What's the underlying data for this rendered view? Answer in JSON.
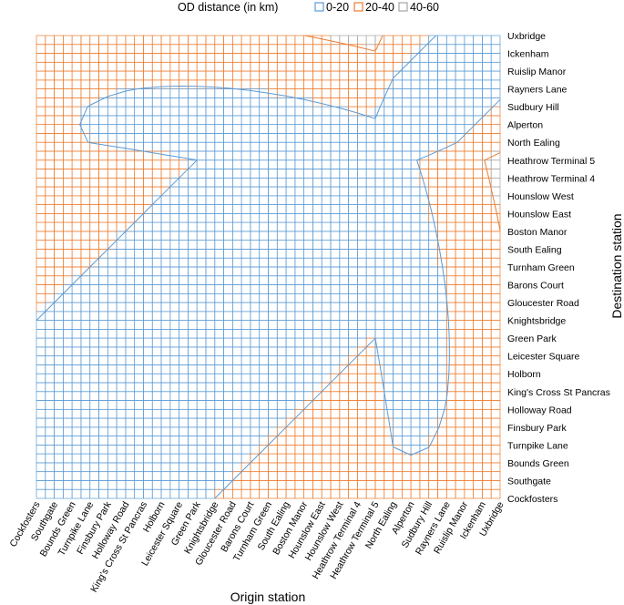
{
  "chart_data": {
    "type": "heatmap",
    "legend_title": "OD distance (in km)",
    "legend": [
      {
        "label": "0-20",
        "color": "#5b9bd5"
      },
      {
        "label": "20-40",
        "color": "#ed7d31"
      },
      {
        "label": "40-60",
        "color": "#a5a5a5"
      }
    ],
    "xlabel": "Origin station",
    "ylabel": "Destination station",
    "stations": [
      "Cockfosters",
      "Southgate",
      "Bounds Green",
      "Turnpike Lane",
      "Finsbury Park",
      "Holloway Road",
      "King's Cross St Pancras",
      "Holborn",
      "Leicester Square",
      "Green Park",
      "Knightsbridge",
      "Gloucester Road",
      "Barons Court",
      "Turnham Green",
      "South Ealing",
      "Boston Manor",
      "Hounslow East",
      "Hounslow West",
      "Heathrow Terminal 4",
      "Heathrow Terminal 5",
      "North Ealing",
      "Alperton",
      "Sudbury Hill",
      "Rayners Lane",
      "Ruislip Manor",
      "Ickenham",
      "Uxbridge"
    ],
    "km_per_station_step": 2.0,
    "colors": {
      "blue": "#5b9bd5",
      "orange": "#ed7d31",
      "gray": "#a5a5a5"
    }
  }
}
